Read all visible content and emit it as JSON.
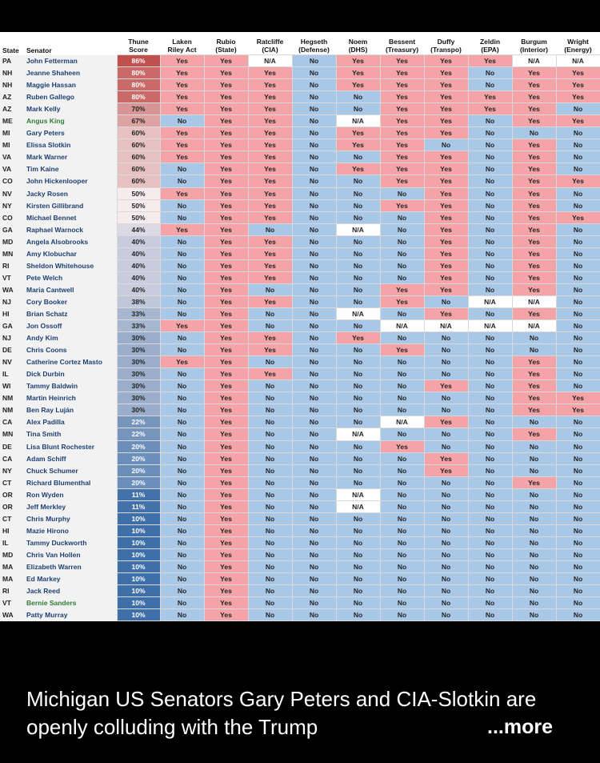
{
  "table": {
    "headers": [
      [
        "State"
      ],
      [
        "Senator"
      ],
      [
        "Thune",
        "Score"
      ],
      [
        "Laken",
        "Riley Act"
      ],
      [
        "Rubio",
        "(State)"
      ],
      [
        "Ratcliffe",
        "(CIA)"
      ],
      [
        "Hegseth",
        "(Defense)"
      ],
      [
        "Noem",
        "(DHS)"
      ],
      [
        "Bessent",
        "(Treasury)"
      ],
      [
        "Duffy",
        "(Transpo)"
      ],
      [
        "Zeldin",
        "(EPA)"
      ],
      [
        "Burgum",
        "(Interior)"
      ],
      [
        "Wright",
        "(Energy)"
      ]
    ],
    "independent_color": "#2e7d32",
    "name_color": "#1f3f73",
    "yes_color": "#f4a3a6",
    "no_color": "#a9c8e8",
    "na_color": "#ffffff",
    "independents": [
      "Angus King",
      "Bernie Sanders"
    ],
    "rows": [
      [
        "PA",
        "John Fetterman",
        "86%",
        "Yes",
        "Yes",
        "N/A",
        "No",
        "Yes",
        "Yes",
        "Yes",
        "Yes",
        "N/A",
        "N/A"
      ],
      [
        "NH",
        "Jeanne Shaheen",
        "80%",
        "Yes",
        "Yes",
        "Yes",
        "No",
        "Yes",
        "Yes",
        "Yes",
        "No",
        "Yes",
        "Yes"
      ],
      [
        "NH",
        "Maggie Hassan",
        "80%",
        "Yes",
        "Yes",
        "Yes",
        "No",
        "Yes",
        "Yes",
        "Yes",
        "No",
        "Yes",
        "Yes"
      ],
      [
        "AZ",
        "Ruben Gallego",
        "80%",
        "Yes",
        "Yes",
        "Yes",
        "No",
        "No",
        "Yes",
        "Yes",
        "Yes",
        "Yes",
        "Yes"
      ],
      [
        "AZ",
        "Mark Kelly",
        "70%",
        "Yes",
        "Yes",
        "Yes",
        "No",
        "No",
        "Yes",
        "Yes",
        "Yes",
        "Yes",
        "No"
      ],
      [
        "ME",
        "Angus King",
        "67%",
        "No",
        "Yes",
        "Yes",
        "No",
        "N/A",
        "Yes",
        "Yes",
        "No",
        "Yes",
        "Yes"
      ],
      [
        "MI",
        "Gary Peters",
        "60%",
        "Yes",
        "Yes",
        "Yes",
        "No",
        "Yes",
        "Yes",
        "Yes",
        "No",
        "No",
        "No"
      ],
      [
        "MI",
        "Elissa Slotkin",
        "60%",
        "Yes",
        "Yes",
        "Yes",
        "No",
        "Yes",
        "Yes",
        "No",
        "No",
        "Yes",
        "No"
      ],
      [
        "VA",
        "Mark Warner",
        "60%",
        "Yes",
        "Yes",
        "Yes",
        "No",
        "No",
        "Yes",
        "Yes",
        "No",
        "Yes",
        "No"
      ],
      [
        "VA",
        "Tim Kaine",
        "60%",
        "No",
        "Yes",
        "Yes",
        "No",
        "Yes",
        "Yes",
        "Yes",
        "No",
        "Yes",
        "No"
      ],
      [
        "CO",
        "John Hickenlooper",
        "60%",
        "No",
        "Yes",
        "Yes",
        "No",
        "No",
        "Yes",
        "Yes",
        "No",
        "Yes",
        "Yes"
      ],
      [
        "NV",
        "Jacky Rosen",
        "50%",
        "Yes",
        "Yes",
        "Yes",
        "No",
        "No",
        "No",
        "Yes",
        "No",
        "Yes",
        "No"
      ],
      [
        "NY",
        "Kirsten Gillibrand",
        "50%",
        "No",
        "Yes",
        "Yes",
        "No",
        "No",
        "Yes",
        "Yes",
        "No",
        "Yes",
        "No"
      ],
      [
        "CO",
        "Michael Bennet",
        "50%",
        "No",
        "Yes",
        "Yes",
        "No",
        "No",
        "No",
        "Yes",
        "No",
        "Yes",
        "Yes"
      ],
      [
        "GA",
        "Raphael Warnock",
        "44%",
        "Yes",
        "Yes",
        "No",
        "No",
        "N/A",
        "No",
        "Yes",
        "No",
        "Yes",
        "No"
      ],
      [
        "MD",
        "Angela Alsobrooks",
        "40%",
        "No",
        "Yes",
        "Yes",
        "No",
        "No",
        "No",
        "Yes",
        "No",
        "Yes",
        "No"
      ],
      [
        "MN",
        "Amy Klobuchar",
        "40%",
        "No",
        "Yes",
        "Yes",
        "No",
        "No",
        "No",
        "Yes",
        "No",
        "Yes",
        "No"
      ],
      [
        "RI",
        "Sheldon Whitehouse",
        "40%",
        "No",
        "Yes",
        "Yes",
        "No",
        "No",
        "No",
        "Yes",
        "No",
        "Yes",
        "No"
      ],
      [
        "VT",
        "Pete Welch",
        "40%",
        "No",
        "Yes",
        "Yes",
        "No",
        "No",
        "No",
        "Yes",
        "No",
        "Yes",
        "No"
      ],
      [
        "WA",
        "Maria Cantwell",
        "40%",
        "No",
        "Yes",
        "No",
        "No",
        "No",
        "Yes",
        "Yes",
        "No",
        "Yes",
        "No"
      ],
      [
        "NJ",
        "Cory Booker",
        "38%",
        "No",
        "Yes",
        "Yes",
        "No",
        "No",
        "Yes",
        "No",
        "N/A",
        "N/A",
        "No"
      ],
      [
        "HI",
        "Brian Schatz",
        "33%",
        "No",
        "Yes",
        "No",
        "No",
        "N/A",
        "No",
        "Yes",
        "No",
        "Yes",
        "No"
      ],
      [
        "GA",
        "Jon Ossoff",
        "33%",
        "Yes",
        "Yes",
        "No",
        "No",
        "No",
        "N/A",
        "N/A",
        "N/A",
        "N/A",
        "No"
      ],
      [
        "NJ",
        "Andy Kim",
        "30%",
        "No",
        "Yes",
        "Yes",
        "No",
        "Yes",
        "No",
        "No",
        "No",
        "No",
        "No"
      ],
      [
        "DE",
        "Chris Coons",
        "30%",
        "No",
        "Yes",
        "Yes",
        "No",
        "No",
        "Yes",
        "No",
        "No",
        "No",
        "No"
      ],
      [
        "NV",
        "Catherine Cortez Masto",
        "30%",
        "Yes",
        "Yes",
        "No",
        "No",
        "No",
        "No",
        "No",
        "No",
        "Yes",
        "No"
      ],
      [
        "IL",
        "Dick Durbin",
        "30%",
        "No",
        "Yes",
        "Yes",
        "No",
        "No",
        "No",
        "No",
        "No",
        "Yes",
        "No"
      ],
      [
        "WI",
        "Tammy Baldwin",
        "30%",
        "No",
        "Yes",
        "No",
        "No",
        "No",
        "No",
        "Yes",
        "No",
        "Yes",
        "No"
      ],
      [
        "NM",
        "Martin Heinrich",
        "30%",
        "No",
        "Yes",
        "No",
        "No",
        "No",
        "No",
        "No",
        "No",
        "Yes",
        "Yes"
      ],
      [
        "NM",
        "Ben Ray Luján",
        "30%",
        "No",
        "Yes",
        "No",
        "No",
        "No",
        "No",
        "No",
        "No",
        "Yes",
        "Yes"
      ],
      [
        "CA",
        "Alex Padilla",
        "22%",
        "No",
        "Yes",
        "No",
        "No",
        "No",
        "N/A",
        "Yes",
        "No",
        "No",
        "No"
      ],
      [
        "MN",
        "Tina Smith",
        "22%",
        "No",
        "Yes",
        "No",
        "No",
        "N/A",
        "No",
        "No",
        "No",
        "Yes",
        "No"
      ],
      [
        "DE",
        "Lisa Blunt Rochester",
        "20%",
        "No",
        "Yes",
        "No",
        "No",
        "No",
        "Yes",
        "No",
        "No",
        "No",
        "No"
      ],
      [
        "CA",
        "Adam Schiff",
        "20%",
        "No",
        "Yes",
        "No",
        "No",
        "No",
        "No",
        "Yes",
        "No",
        "No",
        "No"
      ],
      [
        "NY",
        "Chuck Schumer",
        "20%",
        "No",
        "Yes",
        "No",
        "No",
        "No",
        "No",
        "Yes",
        "No",
        "No",
        "No"
      ],
      [
        "CT",
        "Richard Blumenthal",
        "20%",
        "No",
        "Yes",
        "No",
        "No",
        "No",
        "No",
        "No",
        "No",
        "Yes",
        "No"
      ],
      [
        "OR",
        "Ron Wyden",
        "11%",
        "No",
        "Yes",
        "No",
        "No",
        "N/A",
        "No",
        "No",
        "No",
        "No",
        "No"
      ],
      [
        "OR",
        "Jeff Merkley",
        "11%",
        "No",
        "Yes",
        "No",
        "No",
        "N/A",
        "No",
        "No",
        "No",
        "No",
        "No"
      ],
      [
        "CT",
        "Chris Murphy",
        "10%",
        "No",
        "Yes",
        "No",
        "No",
        "No",
        "No",
        "No",
        "No",
        "No",
        "No"
      ],
      [
        "HI",
        "Mazie Hirono",
        "10%",
        "No",
        "Yes",
        "No",
        "No",
        "No",
        "No",
        "No",
        "No",
        "No",
        "No"
      ],
      [
        "IL",
        "Tammy Duckworth",
        "10%",
        "No",
        "Yes",
        "No",
        "No",
        "No",
        "No",
        "No",
        "No",
        "No",
        "No"
      ],
      [
        "MD",
        "Chris Van Hollen",
        "10%",
        "No",
        "Yes",
        "No",
        "No",
        "No",
        "No",
        "No",
        "No",
        "No",
        "No"
      ],
      [
        "MA",
        "Elizabeth Warren",
        "10%",
        "No",
        "Yes",
        "No",
        "No",
        "No",
        "No",
        "No",
        "No",
        "No",
        "No"
      ],
      [
        "MA",
        "Ed Markey",
        "10%",
        "No",
        "Yes",
        "No",
        "No",
        "No",
        "No",
        "No",
        "No",
        "No",
        "No"
      ],
      [
        "RI",
        "Jack Reed",
        "10%",
        "No",
        "Yes",
        "No",
        "No",
        "No",
        "No",
        "No",
        "No",
        "No",
        "No"
      ],
      [
        "VT",
        "Bernie Sanders",
        "10%",
        "No",
        "Yes",
        "No",
        "No",
        "No",
        "No",
        "No",
        "No",
        "No",
        "No"
      ],
      [
        "WA",
        "Patty Murray",
        "10%",
        "No",
        "Yes",
        "No",
        "No",
        "No",
        "No",
        "No",
        "No",
        "No",
        "No"
      ]
    ]
  },
  "caption": {
    "text": "Michigan US Senators Gary Peters and CIA-Slotkin are openly colluding with the Trump",
    "more": "...more"
  }
}
